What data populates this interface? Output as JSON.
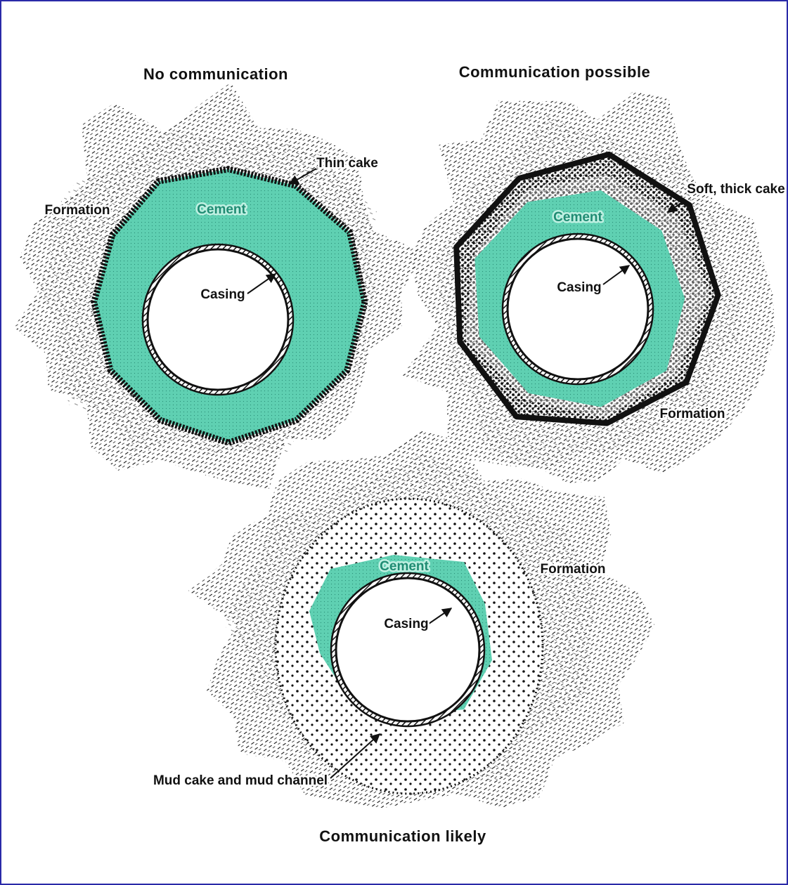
{
  "panels": [
    {
      "title": "No communication",
      "labels": [
        "Thin cake",
        "Formation",
        "Cement",
        "Casing"
      ]
    },
    {
      "title": "Communication possible",
      "labels": [
        "Soft, thick cake",
        "Cement",
        "Casing",
        "Formation"
      ]
    },
    {
      "title": "Communication likely",
      "labels": [
        "Cement",
        "Casing",
        "Formation",
        "Mud cake and mud channel"
      ]
    }
  ]
}
